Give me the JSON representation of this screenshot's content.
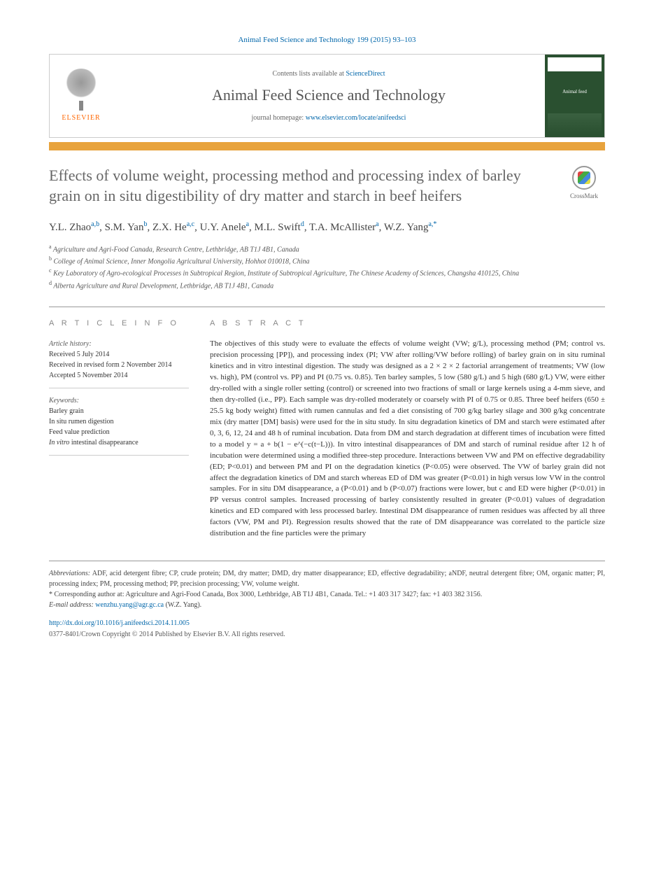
{
  "citation": "Animal Feed Science and Technology 199 (2015) 93–103",
  "header": {
    "contents_prefix": "Contents lists available at ",
    "contents_link": "ScienceDirect",
    "journal_title": "Animal Feed Science and Technology",
    "homepage_prefix": "journal homepage: ",
    "homepage_link": "www.elsevier.com/locate/anifeedsci",
    "publisher": "ELSEVIER",
    "cover_label": "Animal feed"
  },
  "crossmark_label": "CrossMark",
  "article": {
    "title": "Effects of volume weight, processing method and processing index of barley grain on in situ digestibility of dry matter and starch in beef heifers",
    "authors_html": "Y.L. Zhao<sup>a,b</sup>, S.M. Yan<sup>b</sup>, Z.X. He<sup>a,c</sup>, U.Y. Anele<sup>a</sup>, M.L. Swift<sup>d</sup>, T.A. McAllister<sup>a</sup>, W.Z. Yang<sup>a,*</sup>",
    "affiliations": [
      {
        "sup": "a",
        "text": "Agriculture and Agri-Food Canada, Research Centre, Lethbridge, AB T1J 4B1, Canada"
      },
      {
        "sup": "b",
        "text": "College of Animal Science, Inner Mongolia Agricultural University, Hohhot 010018, China"
      },
      {
        "sup": "c",
        "text": "Key Laboratory of Agro-ecological Processes in Subtropical Region, Institute of Subtropical Agriculture, The Chinese Academy of Sciences, Changsha 410125, China"
      },
      {
        "sup": "d",
        "text": "Alberta Agriculture and Rural Development, Lethbridge, AB T1J 4B1, Canada"
      }
    ]
  },
  "article_info": {
    "heading": "A R T I C L E   I N F O",
    "history_label": "Article history:",
    "history": [
      "Received 5 July 2014",
      "Received in revised form 2 November 2014",
      "Accepted 5 November 2014"
    ],
    "keywords_label": "Keywords:",
    "keywords": [
      "Barley grain",
      "In situ rumen digestion",
      "Feed value prediction",
      "In vitro intestinal disappearance"
    ]
  },
  "abstract": {
    "heading": "A B S T R A C T",
    "text": "The objectives of this study were to evaluate the effects of volume weight (VW; g/L), processing method (PM; control vs. precision processing [PP]), and processing index (PI; VW after rolling/VW before rolling) of barley grain on in situ ruminal kinetics and in vitro intestinal digestion. The study was designed as a 2 × 2 × 2 factorial arrangement of treatments; VW (low vs. high), PM (control vs. PP) and PI (0.75 vs. 0.85). Ten barley samples, 5 low (580 g/L) and 5 high (680 g/L) VW, were either dry-rolled with a single roller setting (control) or screened into two fractions of small or large kernels using a 4-mm sieve, and then dry-rolled (i.e., PP). Each sample was dry-rolled moderately or coarsely with PI of 0.75 or 0.85. Three beef heifers (650 ± 25.5 kg body weight) fitted with rumen cannulas and fed a diet consisting of 700 g/kg barley silage and 300 g/kg concentrate mix (dry matter [DM] basis) were used for the in situ study. In situ degradation kinetics of DM and starch were estimated after 0, 3, 6, 12, 24 and 48 h of ruminal incubation. Data from DM and starch degradation at different times of incubation were fitted to a model y = a + b(1 − e^(−c(t−L))). In vitro intestinal disappearances of DM and starch of ruminal residue after 12 h of incubation were determined using a modified three-step procedure. Interactions between VW and PM on effective degradability (ED; P<0.01) and between PM and PI on the degradation kinetics (P<0.05) were observed. The VW of barley grain did not affect the degradation kinetics of DM and starch whereas ED of DM was greater (P<0.01) in high versus low VW in the control samples. For in situ DM disappearance, a (P<0.01) and b (P<0.07) fractions were lower, but c and ED were higher (P<0.01) in PP versus control samples. Increased processing of barley consistently resulted in greater (P<0.01) values of degradation kinetics and ED compared with less processed barley. Intestinal DM disappearance of rumen residues was affected by all three factors (VW, PM and PI). Regression results showed that the rate of DM disappearance was correlated to the particle size distribution and the fine particles were the primary"
  },
  "footnotes": {
    "abbrev_label": "Abbreviations:",
    "abbrev_text": " ADF, acid detergent fibre; CP, crude protein; DM, dry matter; DMD, dry matter disappearance; ED, effective degradability; aNDF, neutral detergent fibre; OM, organic matter; PI, processing index; PM, processing method; PP, precision processing; VW, volume weight.",
    "corr_label": "* Corresponding author at:",
    "corr_text": " Agriculture and Agri-Food Canada, Box 3000, Lethbridge, AB T1J 4B1, Canada. Tel.: +1 403 317 3427; fax: +1 403 382 3156.",
    "email_label": "E-mail address:",
    "email": "wenzhu.yang@agr.gc.ca",
    "email_suffix": " (W.Z. Yang)."
  },
  "doi": {
    "url": "http://dx.doi.org/10.1016/j.anifeedsci.2014.11.005",
    "copyright": "0377-8401/Crown Copyright © 2014 Published by Elsevier B.V. All rights reserved."
  }
}
